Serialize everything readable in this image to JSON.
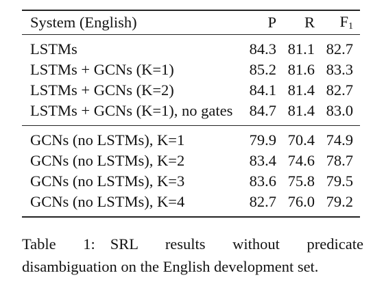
{
  "table": {
    "headers": {
      "system": "System (English)",
      "p": "P",
      "r": "R",
      "f1_base": "F",
      "f1_sub": "1"
    },
    "group1": [
      {
        "system": "LSTMs",
        "p": "84.3",
        "r": "81.1",
        "f1": "82.7"
      },
      {
        "system": "LSTMs + GCNs (K=1)",
        "p": "85.2",
        "r": "81.6",
        "f1": "83.3"
      },
      {
        "system": "LSTMs + GCNs (K=2)",
        "p": "84.1",
        "r": "81.4",
        "f1": "82.7"
      },
      {
        "system": "LSTMs + GCNs (K=1), no gates",
        "p": "84.7",
        "r": "81.4",
        "f1": "83.0"
      }
    ],
    "group2": [
      {
        "system": "GCNs (no LSTMs), K=1",
        "p": "79.9",
        "r": "70.4",
        "f1": "74.9"
      },
      {
        "system": "GCNs (no LSTMs), K=2",
        "p": "83.4",
        "r": "74.6",
        "f1": "78.7"
      },
      {
        "system": "GCNs (no LSTMs), K=3",
        "p": "83.6",
        "r": "75.8",
        "f1": "79.5"
      },
      {
        "system": "GCNs (no LSTMs), K=4",
        "p": "82.7",
        "r": "76.0",
        "f1": "79.2"
      }
    ]
  },
  "caption": {
    "label": "Table 1:",
    "text": "SRL results without predicate disambiguation on the English development set."
  }
}
